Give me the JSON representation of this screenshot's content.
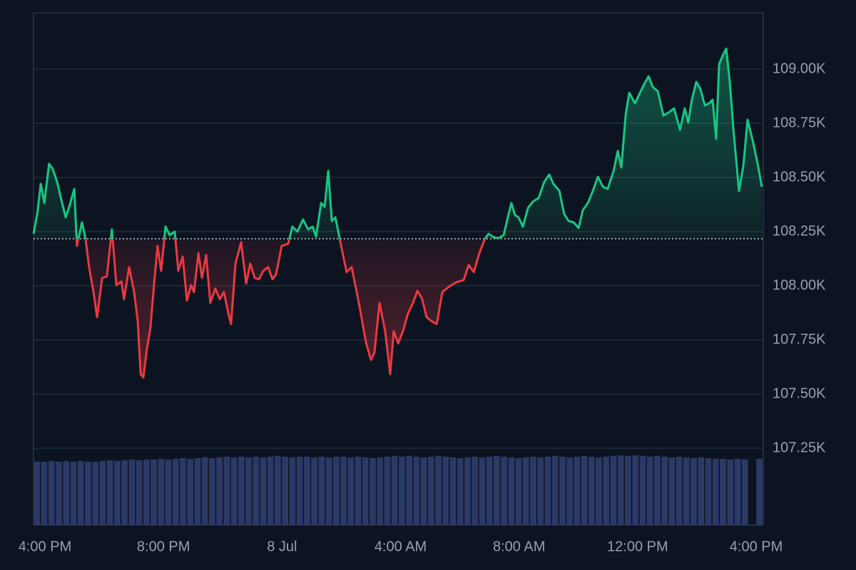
{
  "chart_data": {
    "type": "line",
    "x": [
      -0.385,
      -0.26,
      -0.14,
      -0.02,
      0.14,
      0.26,
      0.41,
      0.55,
      0.7,
      0.82,
      0.99,
      1.08,
      1.25,
      1.37,
      1.49,
      1.64,
      1.76,
      1.93,
      2.09,
      2.26,
      2.41,
      2.58,
      2.67,
      2.84,
      3.01,
      3.13,
      3.23,
      3.32,
      3.44,
      3.56,
      3.68,
      3.8,
      3.92,
      4.07,
      4.21,
      4.38,
      4.5,
      4.65,
      4.79,
      4.93,
      5.03,
      5.18,
      5.3,
      5.44,
      5.58,
      5.75,
      5.9,
      6.04,
      6.19,
      6.28,
      6.43,
      6.62,
      6.79,
      6.93,
      7.08,
      7.22,
      7.37,
      7.53,
      7.68,
      7.8,
      7.99,
      8.21,
      8.35,
      8.52,
      8.71,
      8.88,
      9.03,
      9.15,
      9.32,
      9.44,
      9.56,
      9.68,
      9.8,
      9.97,
      10.18,
      10.35,
      10.52,
      10.66,
      10.83,
      11.0,
      11.12,
      11.29,
      11.48,
      11.65,
      11.77,
      11.92,
      12.08,
      12.25,
      12.42,
      12.57,
      12.73,
      12.88,
      13.02,
      13.22,
      13.41,
      13.65,
      13.89,
      14.13,
      14.3,
      14.47,
      14.66,
      14.85,
      14.97,
      15.14,
      15.31,
      15.48,
      15.62,
      15.74,
      15.86,
      15.98,
      16.13,
      16.3,
      16.46,
      16.66,
      16.85,
      17.02,
      17.16,
      17.36,
      17.52,
      17.67,
      17.84,
      18.01,
      18.15,
      18.32,
      18.49,
      18.66,
      18.83,
      18.99,
      19.19,
      19.33,
      19.45,
      19.6,
      19.72,
      19.91,
      20.08,
      20.22,
      20.37,
      20.51,
      20.68,
      20.87,
      21.04,
      21.23,
      21.43,
      21.59,
      21.71,
      21.83,
      21.98,
      22.12,
      22.27,
      22.41,
      22.53,
      22.65,
      22.75,
      22.87,
      22.99,
      23.11,
      23.23,
      23.42,
      23.57,
      23.71,
      23.9,
      24.05,
      24.19
    ],
    "values": [
      108240,
      108332,
      108470,
      108382,
      108563,
      108540,
      108480,
      108398,
      108316,
      108365,
      108447,
      108184,
      108293,
      108217,
      108086,
      107971,
      107855,
      108036,
      108043,
      108260,
      108003,
      108020,
      107938,
      108086,
      107971,
      107839,
      107592,
      107576,
      107707,
      107806,
      108003,
      108184,
      108069,
      108273,
      108234,
      108250,
      108069,
      108135,
      107931,
      108003,
      107971,
      108151,
      108036,
      108142,
      107921,
      107987,
      107938,
      107971,
      107872,
      107823,
      108102,
      108201,
      108010,
      108102,
      108036,
      108030,
      108069,
      108086,
      108030,
      108053,
      108184,
      108194,
      108273,
      108250,
      108306,
      108260,
      108273,
      108227,
      108382,
      108365,
      108530,
      108299,
      108316,
      108201,
      108063,
      108086,
      107971,
      107872,
      107740,
      107658,
      107691,
      107921,
      107790,
      107592,
      107790,
      107734,
      107790,
      107872,
      107921,
      107977,
      107938,
      107855,
      107839,
      107823,
      107971,
      107997,
      108017,
      108026,
      108096,
      108063,
      108151,
      108217,
      108240,
      108224,
      108220,
      108234,
      108316,
      108382,
      108326,
      108316,
      108273,
      108359,
      108388,
      108405,
      108480,
      108513,
      108470,
      108438,
      108332,
      108299,
      108293,
      108267,
      108349,
      108382,
      108438,
      108503,
      108457,
      108447,
      108530,
      108622,
      108546,
      108793,
      108891,
      108842,
      108891,
      108931,
      108967,
      108918,
      108898,
      108786,
      108799,
      108819,
      108720,
      108819,
      108753,
      108859,
      108941,
      108908,
      108832,
      108842,
      108859,
      108678,
      109023,
      109062,
      109095,
      108941,
      108727,
      108438,
      108556,
      108766,
      108661,
      108563,
      108457
    ],
    "colors": {
      "above": "#16c784",
      "below": "#ea3943"
    },
    "baseline": 108217,
    "volume": {
      "color": "#2b3966",
      "ylim": [
        0,
        100
      ],
      "values": [
        89,
        89,
        90,
        89,
        90,
        89,
        90,
        89,
        89,
        90,
        91,
        90,
        91,
        92,
        91,
        92,
        92,
        93,
        92,
        93,
        94,
        93,
        94,
        95,
        94,
        95,
        96,
        95,
        96,
        95,
        96,
        95,
        96,
        97,
        96,
        95,
        96,
        96,
        95,
        96,
        95,
        96,
        96,
        95,
        96,
        95,
        94,
        95,
        96,
        97,
        96,
        97,
        96,
        95,
        96,
        97,
        96,
        95,
        94,
        95,
        96,
        95,
        96,
        97,
        96,
        95,
        94,
        95,
        96,
        95,
        96,
        97,
        96,
        95,
        96,
        97,
        96,
        95,
        96,
        97,
        98,
        97,
        98,
        97,
        96,
        97,
        96,
        95,
        96,
        95,
        94,
        95,
        94,
        93,
        93,
        92,
        93,
        92,
        null,
        93
      ]
    },
    "xlim": [
      -0.385,
      24.24
    ],
    "ylim": [
      106895,
      109260
    ],
    "xticks": [
      {
        "value": 0,
        "label": "4:00 PM"
      },
      {
        "value": 4,
        "label": "8:00 PM"
      },
      {
        "value": 8,
        "label": "8 Jul"
      },
      {
        "value": 12,
        "label": "4:00 AM"
      },
      {
        "value": 16,
        "label": "8:00 AM"
      },
      {
        "value": 20,
        "label": "12:00 PM"
      },
      {
        "value": 24,
        "label": "4:00 PM"
      }
    ],
    "yticks": [
      {
        "value": 107250,
        "label": "107.25K"
      },
      {
        "value": 107500,
        "label": "107.50K"
      },
      {
        "value": 107750,
        "label": "107.75K"
      },
      {
        "value": 108000,
        "label": "108.00K"
      },
      {
        "value": 108250,
        "label": "108.25K"
      },
      {
        "value": 108500,
        "label": "108.50K"
      },
      {
        "value": 108750,
        "label": "108.75K"
      },
      {
        "value": 109000,
        "label": "109.00K"
      }
    ],
    "grid": true
  }
}
